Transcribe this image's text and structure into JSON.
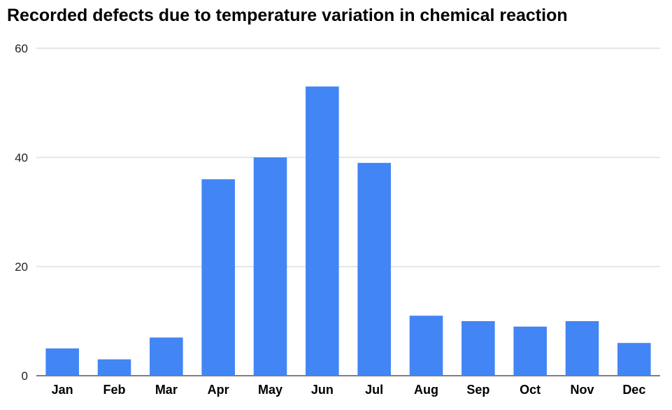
{
  "chart_data": {
    "type": "bar",
    "title": "Recorded defects due to temperature variation in chemical reaction",
    "xlabel": "",
    "ylabel": "",
    "categories": [
      "Jan",
      "Feb",
      "Mar",
      "Apr",
      "May",
      "Jun",
      "Jul",
      "Aug",
      "Sep",
      "Oct",
      "Nov",
      "Dec"
    ],
    "values": [
      5,
      3,
      7,
      36,
      40,
      53,
      39,
      11,
      10,
      9,
      10,
      6
    ],
    "ylim": [
      0,
      60
    ],
    "yticks": [
      0,
      20,
      40,
      60
    ],
    "grid": true,
    "legend": "none",
    "bar_color": "#4285f4",
    "grid_color": "#cccccc"
  }
}
